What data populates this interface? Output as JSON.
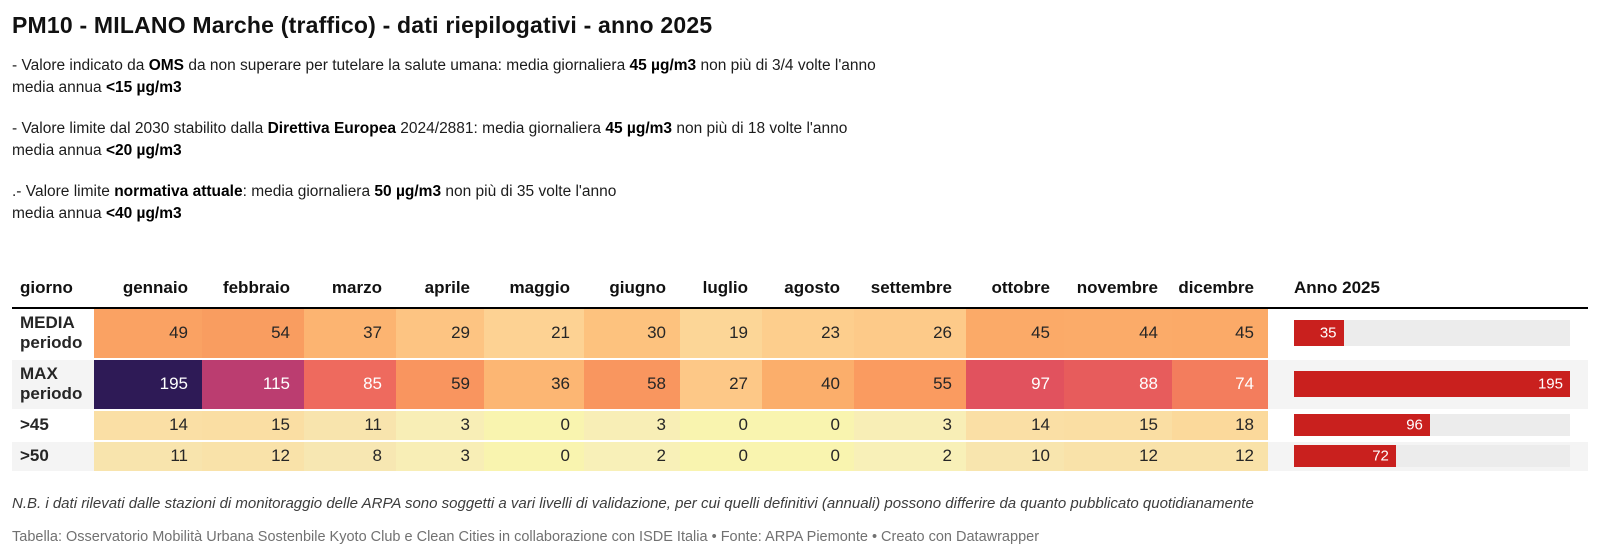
{
  "title": "PM10 - MILANO Marche (traffico) - dati riepilogativi - anno 2025",
  "notes": [
    {
      "l1": [
        {
          "t": "- Valore indicato da "
        },
        {
          "t": "OMS"
        },
        {
          "t": " da non superare per tutelare la salute umana: media giornaliera "
        },
        {
          "t": "45 µg/m3"
        },
        {
          "t": " non più di 3/4 volte l'anno"
        }
      ],
      "l2": [
        {
          "t": "media annua "
        },
        {
          "t": "<15 µg/m3"
        }
      ]
    },
    {
      "l1": [
        {
          "t": "- Valore limite dal 2030 stabilito dalla "
        },
        {
          "t": "Direttiva Europea"
        },
        {
          "t": " 2024/2881: media giornaliera "
        },
        {
          "t": "45 µg/m3"
        },
        {
          "t": " non più di 18 volte l'anno"
        }
      ],
      "l2": [
        {
          "t": "media annua "
        },
        {
          "t": "<20 µg/m3"
        }
      ]
    },
    {
      "l1": [
        {
          "t": ".- Valore limite "
        },
        {
          "t": "normativa attuale"
        },
        {
          "t": ": media giornaliera "
        },
        {
          "t": "50 µg/m3"
        },
        {
          "t": " non più di 35 volte l'anno"
        }
      ],
      "l2": [
        {
          "t": "media annua "
        },
        {
          "t": "<40 µg/m3"
        }
      ]
    }
  ],
  "chart_data": {
    "type": "table",
    "title": "PM10 - MILANO Marche (traffico) - dati riepilogativi - anno 2025",
    "columns": [
      "giorno",
      "gennaio",
      "febbraio",
      "marzo",
      "aprile",
      "maggio",
      "giugno",
      "luglio",
      "agosto",
      "settembre",
      "ottobre",
      "novembre",
      "dicembre",
      "Anno 2025"
    ],
    "rows": [
      {
        "label": "MEDIA periodo",
        "values": [
          49,
          54,
          37,
          29,
          21,
          30,
          19,
          23,
          26,
          45,
          44,
          45
        ],
        "anno": 35
      },
      {
        "label": "MAX periodo",
        "values": [
          195,
          115,
          85,
          59,
          36,
          58,
          27,
          40,
          55,
          97,
          88,
          74
        ],
        "anno": 195
      },
      {
        "label": ">45",
        "values": [
          14,
          15,
          11,
          3,
          0,
          3,
          0,
          0,
          3,
          14,
          15,
          18
        ],
        "anno": 96
      },
      {
        "label": ">50",
        "values": [
          11,
          12,
          8,
          3,
          0,
          2,
          0,
          0,
          2,
          10,
          12,
          12
        ],
        "anno": 72
      }
    ],
    "bar_axis_max": 195,
    "bar_color": "#c9201e",
    "bar_track_color": "#ececec",
    "white_text_threshold": 74,
    "heatmap_dark_text": "#262626",
    "heatmap_light_text": "#ffffff",
    "value_colors": {
      "0": "#f9f4af",
      "2": "#f8f0b8",
      "3": "#f8eeb6",
      "8": "#f7e7b2",
      "10": "#f8e5ae",
      "11": "#f8e4ad",
      "12": "#f9e2a9",
      "14": "#fadfa5",
      "15": "#fadea3",
      "18": "#fbd99b",
      "19": "#fcd697",
      "21": "#fdd293",
      "23": "#fdce8d",
      "26": "#fdca89",
      "27": "#fdc887",
      "29": "#fdc482",
      "30": "#fdc27e",
      "36": "#fcb673",
      "37": "#fcb471",
      "40": "#fbae6b",
      "44": "#fbab69",
      "45": "#fbaa68",
      "49": "#faa263",
      "54": "#f99d60",
      "55": "#fa9b60",
      "58": "#f9965f",
      "59": "#f9955f",
      "74": "#f37d5d",
      "85": "#ee6a5e",
      "88": "#e75c5c",
      "97": "#e1525e",
      "115": "#bb3d70",
      "195": "#2e1a56"
    }
  },
  "footer": {
    "nb": "N.B. i dati rilevati dalle stazioni di monitoraggio delle ARPA sono soggetti a vari livelli di validazione, per cui quelli definitivi (annuali) possono differire da quanto pubblicato quotidianamente",
    "source": "Tabella: Osservatorio Mobilità Urbana Sostenbile Kyoto Club e Clean Cities in collaborazione con ISDE Italia • Fonte: ARPA Piemonte • Creato con Datawrapper"
  }
}
